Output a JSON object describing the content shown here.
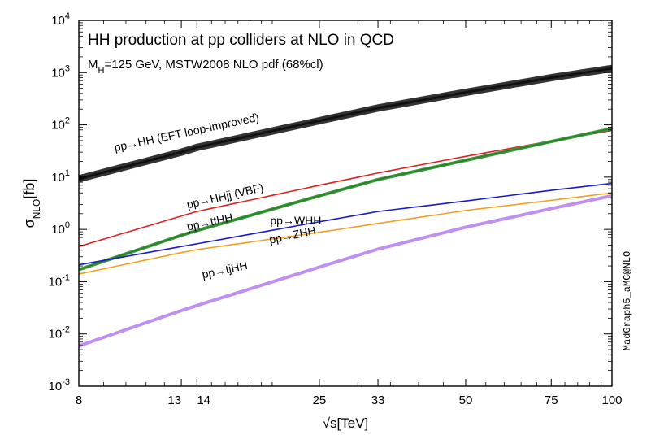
{
  "chart_data": {
    "type": "line",
    "title": "HH production at pp colliders at NLO in QCD",
    "subtitle": {
      "main": "M",
      "sub": "H",
      "rest": "=125 GeV, MSTW2008 NLO pdf (68%cl)"
    },
    "watermark": "MadGraph5_aMC@NLO",
    "xlabel": "√s[TeV]",
    "ylabel": {
      "main": "σ",
      "sub": "NLO",
      "rest": "[fb]"
    },
    "x_scale": "log",
    "y_scale": "log",
    "xlim": [
      8,
      100
    ],
    "ylim": [
      0.001,
      10000
    ],
    "x_ticks": [
      {
        "value": 8,
        "label": "8"
      },
      {
        "value": 13,
        "label": "13"
      },
      {
        "value": 14,
        "label": "14"
      },
      {
        "value": 25,
        "label": "25"
      },
      {
        "value": 33,
        "label": "33"
      },
      {
        "value": 50,
        "label": "50"
      },
      {
        "value": 75,
        "label": "75"
      },
      {
        "value": 100,
        "label": "100"
      }
    ],
    "y_ticks": [
      {
        "value": 0.001,
        "base": "10",
        "exp": "-3"
      },
      {
        "value": 0.01,
        "base": "10",
        "exp": "-2"
      },
      {
        "value": 0.1,
        "base": "10",
        "exp": "-1"
      },
      {
        "value": 1,
        "base": "10",
        "exp": "0"
      },
      {
        "value": 10,
        "base": "10",
        "exp": "1"
      },
      {
        "value": 100,
        "base": "10",
        "exp": "2"
      },
      {
        "value": 1000,
        "base": "10",
        "exp": "3"
      },
      {
        "value": 10000,
        "base": "10",
        "exp": "4"
      }
    ],
    "grid": false,
    "series": [
      {
        "name": "pp→HH (EFT loop-improved)",
        "color": "#333333",
        "x": [
          8,
          13,
          14,
          25,
          33,
          50,
          75,
          100
        ],
        "y": [
          9.3,
          30,
          37,
          120,
          210,
          420,
          800,
          1200
        ]
      },
      {
        "name": "pp→HHjj (VBF)",
        "color": "#e02020",
        "x": [
          8,
          13,
          14,
          25,
          33,
          50,
          75,
          100
        ],
        "y": [
          0.47,
          1.8,
          2.2,
          7.0,
          12,
          25,
          49,
          78
        ]
      },
      {
        "name": "pp→ttHH",
        "color": "#3a9a3a",
        "x": [
          8,
          13,
          14,
          25,
          33,
          50,
          75,
          100
        ],
        "y": [
          0.17,
          0.77,
          0.95,
          4.4,
          9.0,
          21,
          48,
          85
        ]
      },
      {
        "name": "pp→WHH",
        "color": "#1a1acc",
        "x": [
          8,
          13,
          14,
          25,
          33,
          50,
          75,
          100
        ],
        "y": [
          0.21,
          0.47,
          0.53,
          1.4,
          2.2,
          3.5,
          5.6,
          7.6
        ]
      },
      {
        "name": "pp→ZHH",
        "color": "#f0a020",
        "x": [
          8,
          13,
          14,
          25,
          33,
          50,
          75,
          100
        ],
        "y": [
          0.14,
          0.36,
          0.41,
          0.88,
          1.3,
          2.3,
          3.6,
          5.0
        ]
      },
      {
        "name": "pp→tjHH",
        "color": "#c090f0",
        "x": [
          8,
          13,
          14,
          25,
          33,
          50,
          75,
          100
        ],
        "y": [
          0.0059,
          0.028,
          0.035,
          0.19,
          0.42,
          1.1,
          2.5,
          4.4
        ]
      }
    ],
    "annotations": [
      {
        "text": "pp→HH (EFT loop-improved)",
        "series": 0,
        "x": 9.5,
        "y": 31,
        "angle": -12,
        "anchor": "start"
      },
      {
        "text": "pp→HHjj (VBF)",
        "series": 1,
        "x": 13.4,
        "y": 2.5,
        "angle": -13,
        "anchor": "start"
      },
      {
        "text": "pp→ttHH",
        "series": 2,
        "x": 13.4,
        "y": 0.95,
        "angle": -12,
        "anchor": "start"
      },
      {
        "text": "pp→WHH",
        "series": 3,
        "x": 19.8,
        "y": 1.25,
        "angle": 0,
        "anchor": "start"
      },
      {
        "text": "pp→ZHH",
        "series": 4,
        "x": 19.8,
        "y": 0.53,
        "angle": -12,
        "anchor": "start"
      },
      {
        "text": "pp→tjHH",
        "series": 5,
        "x": 14.4,
        "y": 0.115,
        "angle": -12,
        "anchor": "start"
      }
    ]
  }
}
